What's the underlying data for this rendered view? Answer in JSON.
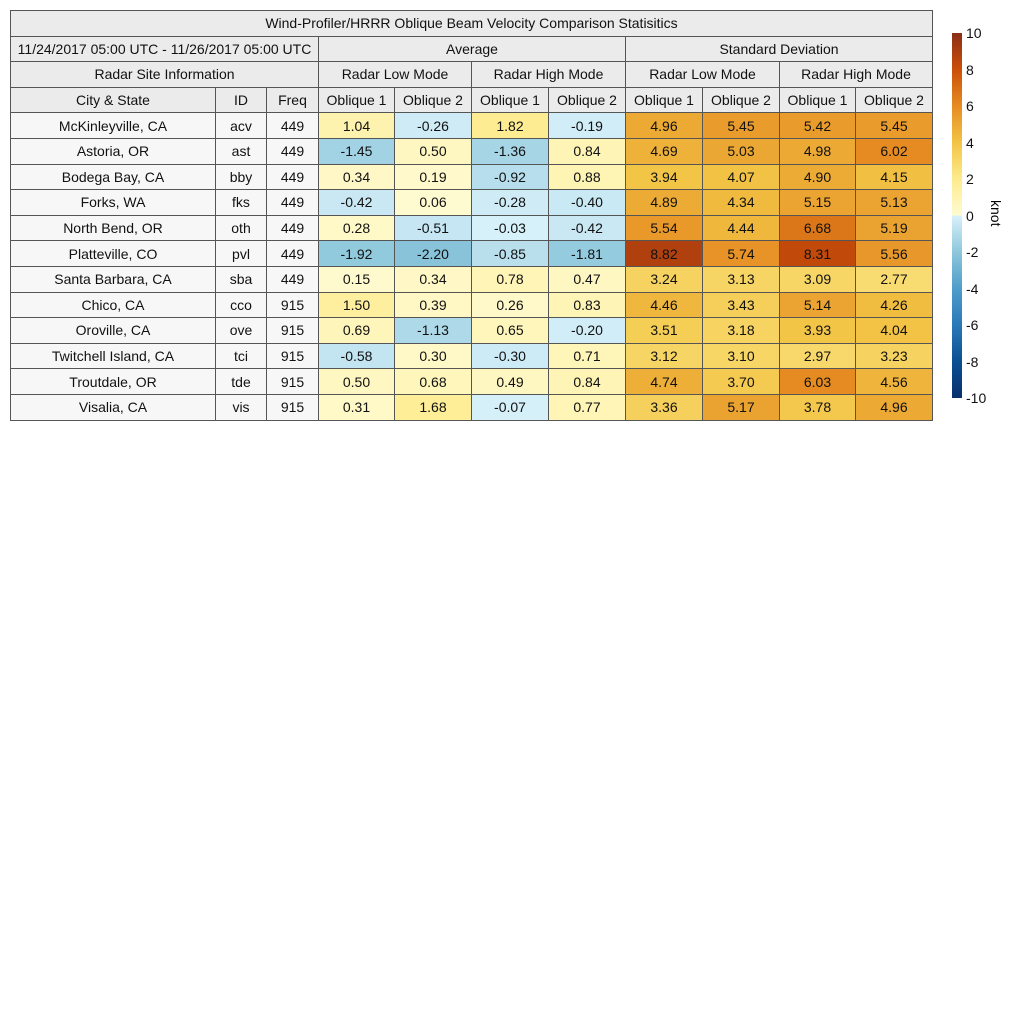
{
  "chart_data": {
    "type": "heatmap",
    "title": "Wind-Profiler/HRRR Oblique Beam Velocity Comparison Statisitics",
    "date_range": "11/24/2017 05:00 UTC - 11/26/2017 05:00 UTC",
    "site_group_label": "Radar Site Information",
    "stat_groups": [
      "Average",
      "Standard Deviation"
    ],
    "modes": [
      "Radar Low Mode",
      "Radar High Mode"
    ],
    "beams": [
      "Oblique 1",
      "Oblique 2"
    ],
    "site_columns": [
      "City & State",
      "ID",
      "Freq"
    ],
    "rows": [
      {
        "city": "McKinleyville, CA",
        "id": "acv",
        "freq": "449",
        "values": [
          "1.04",
          "-0.26",
          "1.82",
          "-0.19",
          "4.96",
          "5.45",
          "5.42",
          "5.45"
        ]
      },
      {
        "city": "Astoria, OR",
        "id": "ast",
        "freq": "449",
        "values": [
          "-1.45",
          "0.50",
          "-1.36",
          "0.84",
          "4.69",
          "5.03",
          "4.98",
          "6.02"
        ]
      },
      {
        "city": "Bodega Bay, CA",
        "id": "bby",
        "freq": "449",
        "values": [
          "0.34",
          "0.19",
          "-0.92",
          "0.88",
          "3.94",
          "4.07",
          "4.90",
          "4.15"
        ]
      },
      {
        "city": "Forks, WA",
        "id": "fks",
        "freq": "449",
        "values": [
          "-0.42",
          "0.06",
          "-0.28",
          "-0.40",
          "4.89",
          "4.34",
          "5.15",
          "5.13"
        ]
      },
      {
        "city": "North Bend, OR",
        "id": "oth",
        "freq": "449",
        "values": [
          "0.28",
          "-0.51",
          "-0.03",
          "-0.42",
          "5.54",
          "4.44",
          "6.68",
          "5.19"
        ]
      },
      {
        "city": "Platteville, CO",
        "id": "pvl",
        "freq": "449",
        "values": [
          "-1.92",
          "-2.20",
          "-0.85",
          "-1.81",
          "8.82",
          "5.74",
          "8.31",
          "5.56"
        ]
      },
      {
        "city": "Santa Barbara, CA",
        "id": "sba",
        "freq": "449",
        "values": [
          "0.15",
          "0.34",
          "0.78",
          "0.47",
          "3.24",
          "3.13",
          "3.09",
          "2.77"
        ]
      },
      {
        "city": "Chico, CA",
        "id": "cco",
        "freq": "915",
        "values": [
          "1.50",
          "0.39",
          "0.26",
          "0.83",
          "4.46",
          "3.43",
          "5.14",
          "4.26"
        ]
      },
      {
        "city": "Oroville, CA",
        "id": "ove",
        "freq": "915",
        "values": [
          "0.69",
          "-1.13",
          "0.65",
          "-0.20",
          "3.51",
          "3.18",
          "3.93",
          "4.04"
        ]
      },
      {
        "city": "Twitchell Island, CA",
        "id": "tci",
        "freq": "915",
        "values": [
          "-0.58",
          "0.30",
          "-0.30",
          "0.71",
          "3.12",
          "3.10",
          "2.97",
          "3.23"
        ]
      },
      {
        "city": "Troutdale, OR",
        "id": "tde",
        "freq": "915",
        "values": [
          "0.50",
          "0.68",
          "0.49",
          "0.84",
          "4.74",
          "3.70",
          "6.03",
          "4.56"
        ]
      },
      {
        "city": "Visalia, CA",
        "id": "vis",
        "freq": "915",
        "values": [
          "0.31",
          "1.68",
          "-0.07",
          "0.77",
          "3.36",
          "5.17",
          "3.78",
          "4.96"
        ]
      }
    ],
    "colorbar": {
      "label": "knot",
      "range": [
        -10,
        10
      ],
      "ticks": [
        "10",
        "8",
        "6",
        "4",
        "2",
        "0",
        "-2",
        "-4",
        "-6",
        "-8",
        "-10"
      ],
      "stops": [
        [
          -10,
          "#08306b"
        ],
        [
          -8,
          "#0b4f93"
        ],
        [
          -6,
          "#2a79b8"
        ],
        [
          -4,
          "#4f9dca"
        ],
        [
          -2,
          "#8ec7dc"
        ],
        [
          -0.01,
          "#d8f1fa"
        ],
        [
          0,
          "#fffbd2"
        ],
        [
          2,
          "#fdeb8c"
        ],
        [
          4,
          "#f2c445"
        ],
        [
          6,
          "#e58c22"
        ],
        [
          8,
          "#cb4f08"
        ],
        [
          10,
          "#8a2e18"
        ]
      ]
    }
  }
}
